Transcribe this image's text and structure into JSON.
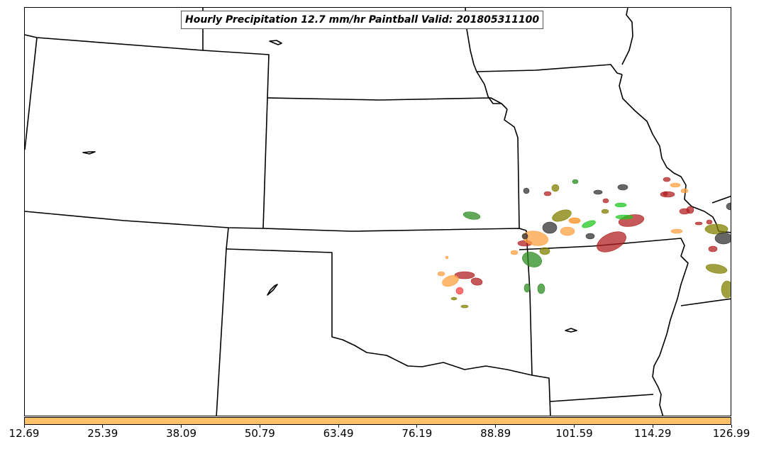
{
  "title": "Hourly Precipitation 12.7 mm/hr Paintball Valid: 201805311100",
  "colorbar": {
    "color": "#ffc06a",
    "ticks": [
      "12.69",
      "25.39",
      "38.09",
      "50.79",
      "63.49",
      "76.19",
      "88.89",
      "101.59",
      "114.29",
      "126.99"
    ]
  },
  "colors": {
    "boundary": "#000000",
    "member_colors": [
      "#2e8b22",
      "#ff8c1a",
      "#b22222",
      "#22c722",
      "#333333",
      "#808000",
      "#ffa040",
      "#ff4040"
    ]
  }
}
